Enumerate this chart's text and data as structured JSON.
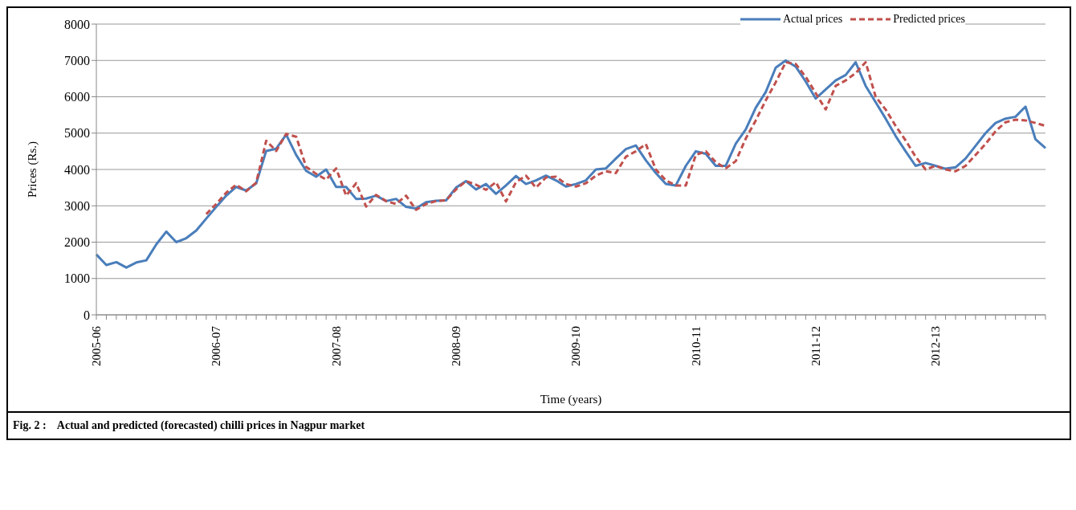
{
  "chart_data": {
    "type": "line",
    "xlabel": "Time (years)",
    "ylabel": "Prices (Rs.)",
    "categories": [
      "2005-06",
      null,
      null,
      null,
      null,
      null,
      null,
      null,
      null,
      null,
      null,
      null,
      "2006-07",
      null,
      null,
      null,
      null,
      null,
      null,
      null,
      null,
      null,
      null,
      null,
      "2007-08",
      null,
      null,
      null,
      null,
      null,
      null,
      null,
      null,
      null,
      null,
      null,
      "2008-09",
      null,
      null,
      null,
      null,
      null,
      null,
      null,
      null,
      null,
      null,
      null,
      "2009-10",
      null,
      null,
      null,
      null,
      null,
      null,
      null,
      null,
      null,
      null,
      null,
      "2010-11",
      null,
      null,
      null,
      null,
      null,
      null,
      null,
      null,
      null,
      null,
      null,
      "2011-12",
      null,
      null,
      null,
      null,
      null,
      null,
      null,
      null,
      null,
      null,
      null,
      "2012-13",
      null,
      null,
      null,
      null,
      null,
      null,
      null,
      null,
      null,
      null,
      null
    ],
    "series": [
      {
        "name": "Actual prices",
        "color": "#4a7ebb",
        "line_style": "solid",
        "values": [
          1660,
          1370,
          1450,
          1300,
          1440,
          1500,
          1940,
          2290,
          2000,
          2110,
          2320,
          2650,
          2970,
          3280,
          3520,
          3420,
          3620,
          4510,
          4570,
          4960,
          4400,
          3960,
          3800,
          4000,
          3520,
          3520,
          3190,
          3200,
          3280,
          3130,
          3190,
          2970,
          2930,
          3100,
          3140,
          3150,
          3500,
          3680,
          3450,
          3600,
          3330,
          3560,
          3820,
          3600,
          3700,
          3830,
          3700,
          3530,
          3600,
          3700,
          4000,
          4030,
          4300,
          4560,
          4660,
          4250,
          3900,
          3600,
          3560,
          4100,
          4500,
          4430,
          4100,
          4100,
          4710,
          5100,
          5700,
          6130,
          6800,
          7000,
          6830,
          6420,
          5950,
          6200,
          6450,
          6600,
          6950,
          6300,
          5850,
          5400,
          4920,
          4500,
          4100,
          4180,
          4100,
          4020,
          4060,
          4300,
          4650,
          5000,
          5280,
          5400,
          5450,
          5730,
          4830,
          4590
        ]
      },
      {
        "name": "Predicted prices",
        "color": "#c0504d",
        "line_style": "dashed",
        "values": [
          null,
          null,
          null,
          null,
          null,
          null,
          null,
          null,
          null,
          null,
          null,
          2770,
          3050,
          3360,
          3580,
          3400,
          3640,
          4790,
          4510,
          4980,
          4900,
          4070,
          3880,
          3720,
          4030,
          3280,
          3620,
          2980,
          3300,
          3130,
          3050,
          3280,
          2890,
          3050,
          3130,
          3150,
          3450,
          3680,
          3580,
          3440,
          3650,
          3120,
          3650,
          3830,
          3500,
          3780,
          3800,
          3600,
          3530,
          3620,
          3830,
          3950,
          3900,
          4350,
          4500,
          4700,
          4000,
          3700,
          3560,
          3560,
          4400,
          4500,
          4200,
          4030,
          4230,
          4850,
          5350,
          5900,
          6400,
          6950,
          6900,
          6550,
          6100,
          5650,
          6300,
          6450,
          6650,
          6950,
          6000,
          5650,
          5200,
          4800,
          4350,
          4000,
          4100,
          4000,
          3950,
          4100,
          4400,
          4700,
          5050,
          5300,
          5370,
          5350,
          5280,
          5200
        ]
      }
    ],
    "ylim": [
      0,
      8000
    ],
    "yticks": [
      0,
      1000,
      2000,
      3000,
      4000,
      5000,
      6000,
      7000,
      8000
    ],
    "grid": "y",
    "legend": "top right",
    "marker": "none",
    "annotations": [
      "Fig. 2 :    Actual and predicted (forecasted) chilli prices in Nagpur market"
    ]
  }
}
